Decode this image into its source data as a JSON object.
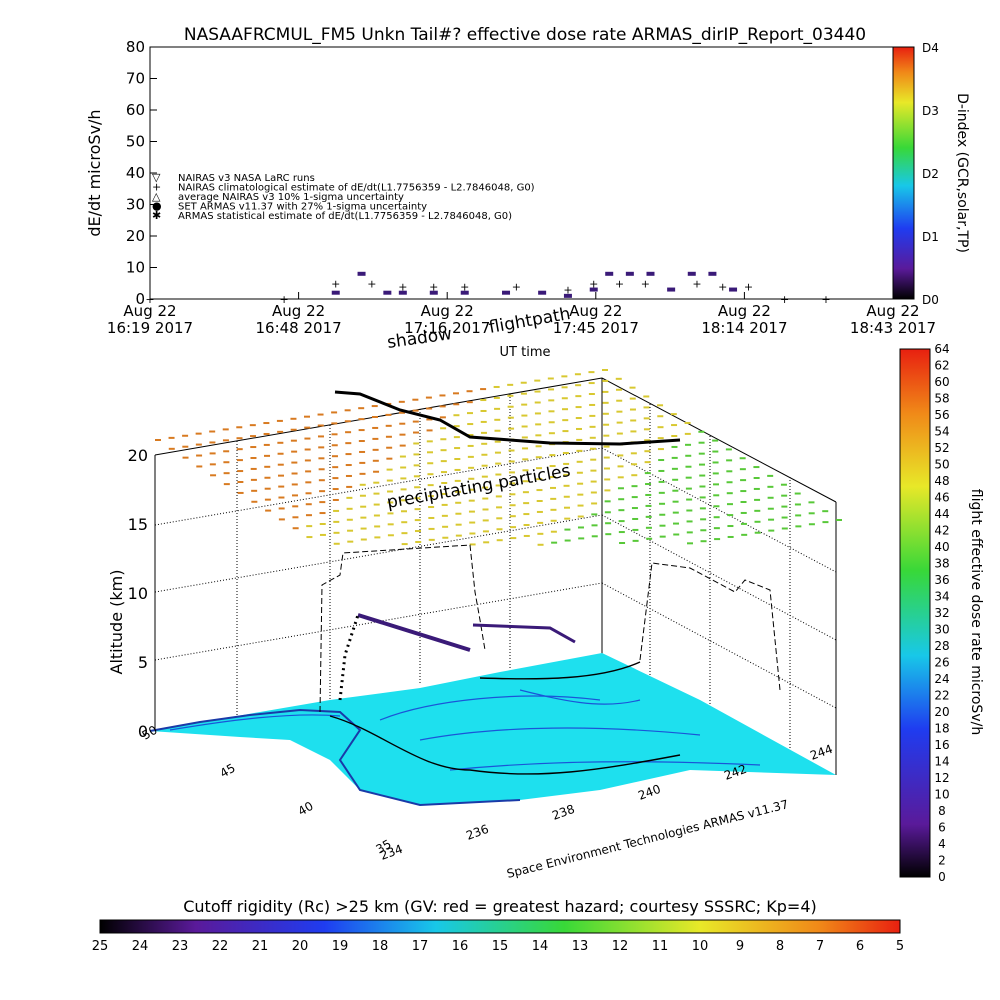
{
  "title": "NASAAFRCMUL_FM5 Unkn Tail#? effective dose rate ARMAS_dirIP_Report_03440",
  "colors": {
    "nairas": "#000000",
    "armas": "#3a1a78",
    "cyan_map": "#1ee0ee",
    "contour_blue": "#1a55d8",
    "field_orange": "#d87a20",
    "field_yellow": "#d8c830",
    "field_green": "#58c838"
  },
  "top_panel": {
    "ylabel": "dE/dt microSv/h",
    "xlabel": "UT time",
    "yticks": [
      "0",
      "10",
      "20",
      "30",
      "40",
      "50",
      "60",
      "70",
      "80"
    ],
    "xticks": [
      {
        "l1": "Aug 22",
        "l2": "16:19 2017"
      },
      {
        "l1": "Aug 22",
        "l2": "16:48 2017"
      },
      {
        "l1": "Aug 22",
        "l2": "17:16 2017"
      },
      {
        "l1": "Aug 22",
        "l2": "17:45 2017"
      },
      {
        "l1": "Aug 22",
        "l2": "18:14 2017"
      },
      {
        "l1": "Aug 22",
        "l2": "18:43 2017"
      }
    ],
    "legend": [
      {
        "symbol": "▽",
        "text": "NAIRAS v3 NASA LaRC runs"
      },
      {
        "symbol": "+",
        "text": "NAIRAS climatological estimate of dE/dt(L1.7756359 - L2.7846048, G0)"
      },
      {
        "symbol": "△",
        "text": "average NAIRAS v3 10% 1-sigma uncertainty"
      },
      {
        "symbol": "●",
        "text": "SET ARMAS v11.37 with 27% 1-sigma uncertainty"
      },
      {
        "symbol": "✱",
        "text": "ARMAS statistical estimate of dE/dt(L1.7756359 - L2.7846048, G0)"
      }
    ],
    "right_bar": {
      "label": "D-index (GCR,solar,TP)",
      "ticks": [
        "D0",
        "D1",
        "D2",
        "D3",
        "D4"
      ]
    }
  },
  "chart_data": [
    {
      "type": "scatter",
      "title": "NASAAFRCMUL_FM5 Unkn Tail#? effective dose rate ARMAS_dirIP_Report_03440",
      "xlabel": "UT time",
      "ylabel": "dE/dt microSv/h",
      "xlim": [
        "16:19",
        "18:43"
      ],
      "ylim": [
        0,
        80
      ],
      "series": [
        {
          "name": "NAIRAS climatological estimate of dE/dt(L1.7756359 - L2.7846048, G0)",
          "x": [
            "16:19",
            "16:45",
            "16:55",
            "17:02",
            "17:08",
            "17:14",
            "17:20",
            "17:30",
            "17:40",
            "17:45",
            "17:50",
            "17:55",
            "18:05",
            "18:10",
            "18:15",
            "18:22",
            "18:30"
          ],
          "y": [
            0,
            0,
            5,
            5,
            4,
            4,
            4,
            4,
            3,
            5,
            5,
            5,
            5,
            4,
            4,
            0,
            0
          ]
        },
        {
          "name": "SET ARMAS v11.37 with 27% 1-sigma uncertainty",
          "x": [
            "16:55",
            "17:00",
            "17:05",
            "17:08",
            "17:14",
            "17:20",
            "17:28",
            "17:35",
            "17:40",
            "17:45",
            "17:48",
            "17:52",
            "17:56",
            "18:00",
            "18:04",
            "18:08",
            "18:12"
          ],
          "y": [
            2,
            8,
            2,
            2,
            2,
            2,
            2,
            2,
            1,
            3,
            8,
            8,
            8,
            3,
            8,
            8,
            3
          ]
        }
      ],
      "legend_position": "top-left"
    },
    {
      "type": "line",
      "title": "",
      "zlabel": "Altitude (km)",
      "zticks": [
        "0",
        "5",
        "10",
        "15",
        "20"
      ],
      "lat_ticks": [
        "50",
        "45",
        "40",
        "35"
      ],
      "lon_ticks": [
        "234",
        "236",
        "238",
        "240",
        "242",
        "244"
      ],
      "annotations": [
        "shadow",
        "flightpath",
        "precipitating particles"
      ],
      "credit": "Space Environment Technologies ARMAS v11.37"
    }
  ],
  "dose_bar": {
    "label": "flight effective dose rate microSv/h",
    "ticks": [
      "0",
      "2",
      "4",
      "6",
      "8",
      "10",
      "12",
      "14",
      "16",
      "18",
      "20",
      "22",
      "24",
      "26",
      "28",
      "30",
      "32",
      "34",
      "36",
      "38",
      "40",
      "42",
      "44",
      "46",
      "48",
      "50",
      "52",
      "54",
      "56",
      "58",
      "60",
      "62",
      "64"
    ]
  },
  "rc_bar": {
    "label": "Cutoff rigidity (Rc) >25 km (GV: red = greatest hazard; courtesy SSSRC; Kp=4)",
    "ticks": [
      "25",
      "24",
      "23",
      "22",
      "21",
      "20",
      "19",
      "18",
      "17",
      "16",
      "15",
      "14",
      "13",
      "12",
      "11",
      "10",
      "9",
      "8",
      "7",
      "6",
      "5"
    ]
  }
}
